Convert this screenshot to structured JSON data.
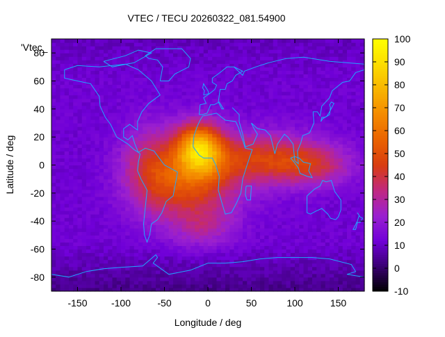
{
  "chart_data": {
    "type": "heatmap",
    "title": "VTEC / TECU 20260322_081.54900",
    "xlabel": "Longitude / deg",
    "ylabel": "Latitude / deg",
    "key_label": "'Vtec_",
    "xlim": [
      -180,
      180
    ],
    "ylim": [
      -90,
      90
    ],
    "x_ticks": [
      -150,
      -100,
      -50,
      0,
      50,
      100,
      150
    ],
    "y_ticks": [
      -80,
      -60,
      -40,
      -20,
      0,
      20,
      40,
      60,
      80
    ],
    "colorbar": {
      "range": [
        -10,
        100
      ],
      "ticks": [
        -10,
        0,
        10,
        20,
        30,
        40,
        50,
        60,
        70,
        80,
        90,
        100
      ],
      "palette": [
        "#000000",
        "#3a0073",
        "#7000d8",
        "#9a20d0",
        "#c02880",
        "#d83d10",
        "#ea6200",
        "#f48a00",
        "#f8b400",
        "#fcdc00",
        "#ffff00"
      ]
    },
    "grid": false,
    "features": {
      "peak_vtec": 90,
      "peak_location": {
        "lon": -10,
        "lat": 10
      },
      "background_vtec": 12,
      "coastline_color": "#20a8ff"
    },
    "tec_sources": [
      {
        "lon": -10,
        "lat": 12,
        "lon_spread": 26,
        "lat_spread": 18,
        "amp": 60
      },
      {
        "lon": -20,
        "lat": -15,
        "lon_spread": 55,
        "lat_spread": 26,
        "amp": 32
      },
      {
        "lon": -65,
        "lat": 0,
        "lon_spread": 35,
        "lat_spread": 28,
        "amp": 22
      },
      {
        "lon": 60,
        "lat": 5,
        "lon_spread": 70,
        "lat_spread": 18,
        "amp": 30
      },
      {
        "lon": 120,
        "lat": 0,
        "lon_spread": 45,
        "lat_spread": 14,
        "amp": 20
      },
      {
        "lon": -5,
        "lat": -45,
        "lon_spread": 35,
        "lat_spread": 14,
        "amp": 12
      }
    ]
  }
}
